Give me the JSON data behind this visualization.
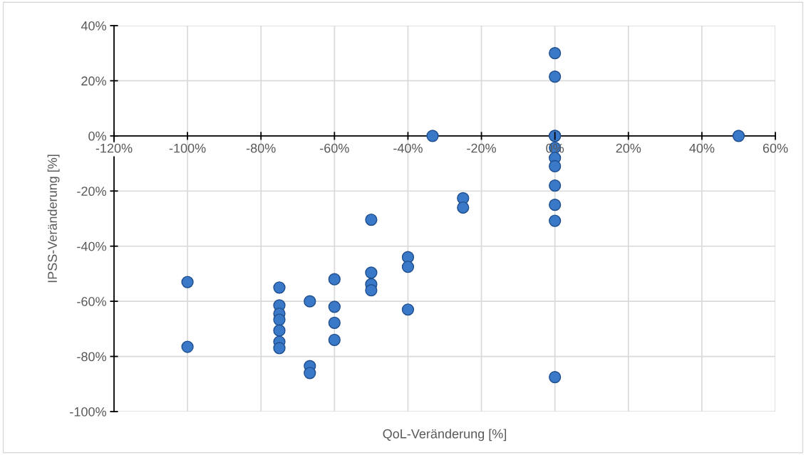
{
  "chart_data": {
    "type": "scatter",
    "xlabel": "QoL-Veränderung [%]",
    "ylabel": "IPSS-Veränderung [%]",
    "x": [
      -100,
      -100,
      -75,
      -75,
      -75,
      -75,
      -75,
      -75,
      -75,
      -66.7,
      -66.7,
      -66.7,
      -60,
      -60,
      -60,
      -60,
      -50,
      -50,
      -50,
      -50,
      -40,
      -40,
      -40,
      -33.3,
      -25,
      -25,
      0,
      0,
      0,
      0,
      0,
      0,
      0,
      0,
      0,
      0,
      0,
      50
    ],
    "values": [
      -53,
      -76.5,
      -55,
      -61.5,
      -64.5,
      -66.7,
      -70.6,
      -74.7,
      -77,
      -60,
      -83.5,
      -86,
      -52,
      -62,
      -67.8,
      -74,
      -30.4,
      -49.6,
      -53.8,
      -56,
      -44,
      -47.5,
      -63,
      0,
      -22.6,
      -26,
      30,
      21.5,
      0,
      -4.3,
      -8,
      -11,
      -18,
      -25,
      -30.8,
      -87.5,
      0,
      0
    ],
    "color": "#3a78c8",
    "marker": "circle",
    "xlim": [
      -120,
      60
    ],
    "xticks": [
      {
        "value": -120,
        "label": "-120%"
      },
      {
        "value": -100,
        "label": "-100%"
      },
      {
        "value": -80,
        "label": "-80%"
      },
      {
        "value": -60,
        "label": "-60%"
      },
      {
        "value": -40,
        "label": "-40%"
      },
      {
        "value": -20,
        "label": "-20%"
      },
      {
        "value": 0,
        "label": "0%"
      },
      {
        "value": 20,
        "label": "20%"
      },
      {
        "value": 40,
        "label": "40%"
      },
      {
        "value": 60,
        "label": "60%"
      }
    ],
    "ylim": [
      -100,
      40
    ],
    "yticks": [
      {
        "value": -100,
        "label": "-100%"
      },
      {
        "value": -80,
        "label": "-80%"
      },
      {
        "value": -60,
        "label": "-60%"
      },
      {
        "value": -40,
        "label": "-40%"
      },
      {
        "value": -20,
        "label": "-20%"
      },
      {
        "value": 0,
        "label": "0%"
      },
      {
        "value": 20,
        "label": "20%"
      },
      {
        "value": 40,
        "label": "40%"
      }
    ],
    "grid": true
  }
}
